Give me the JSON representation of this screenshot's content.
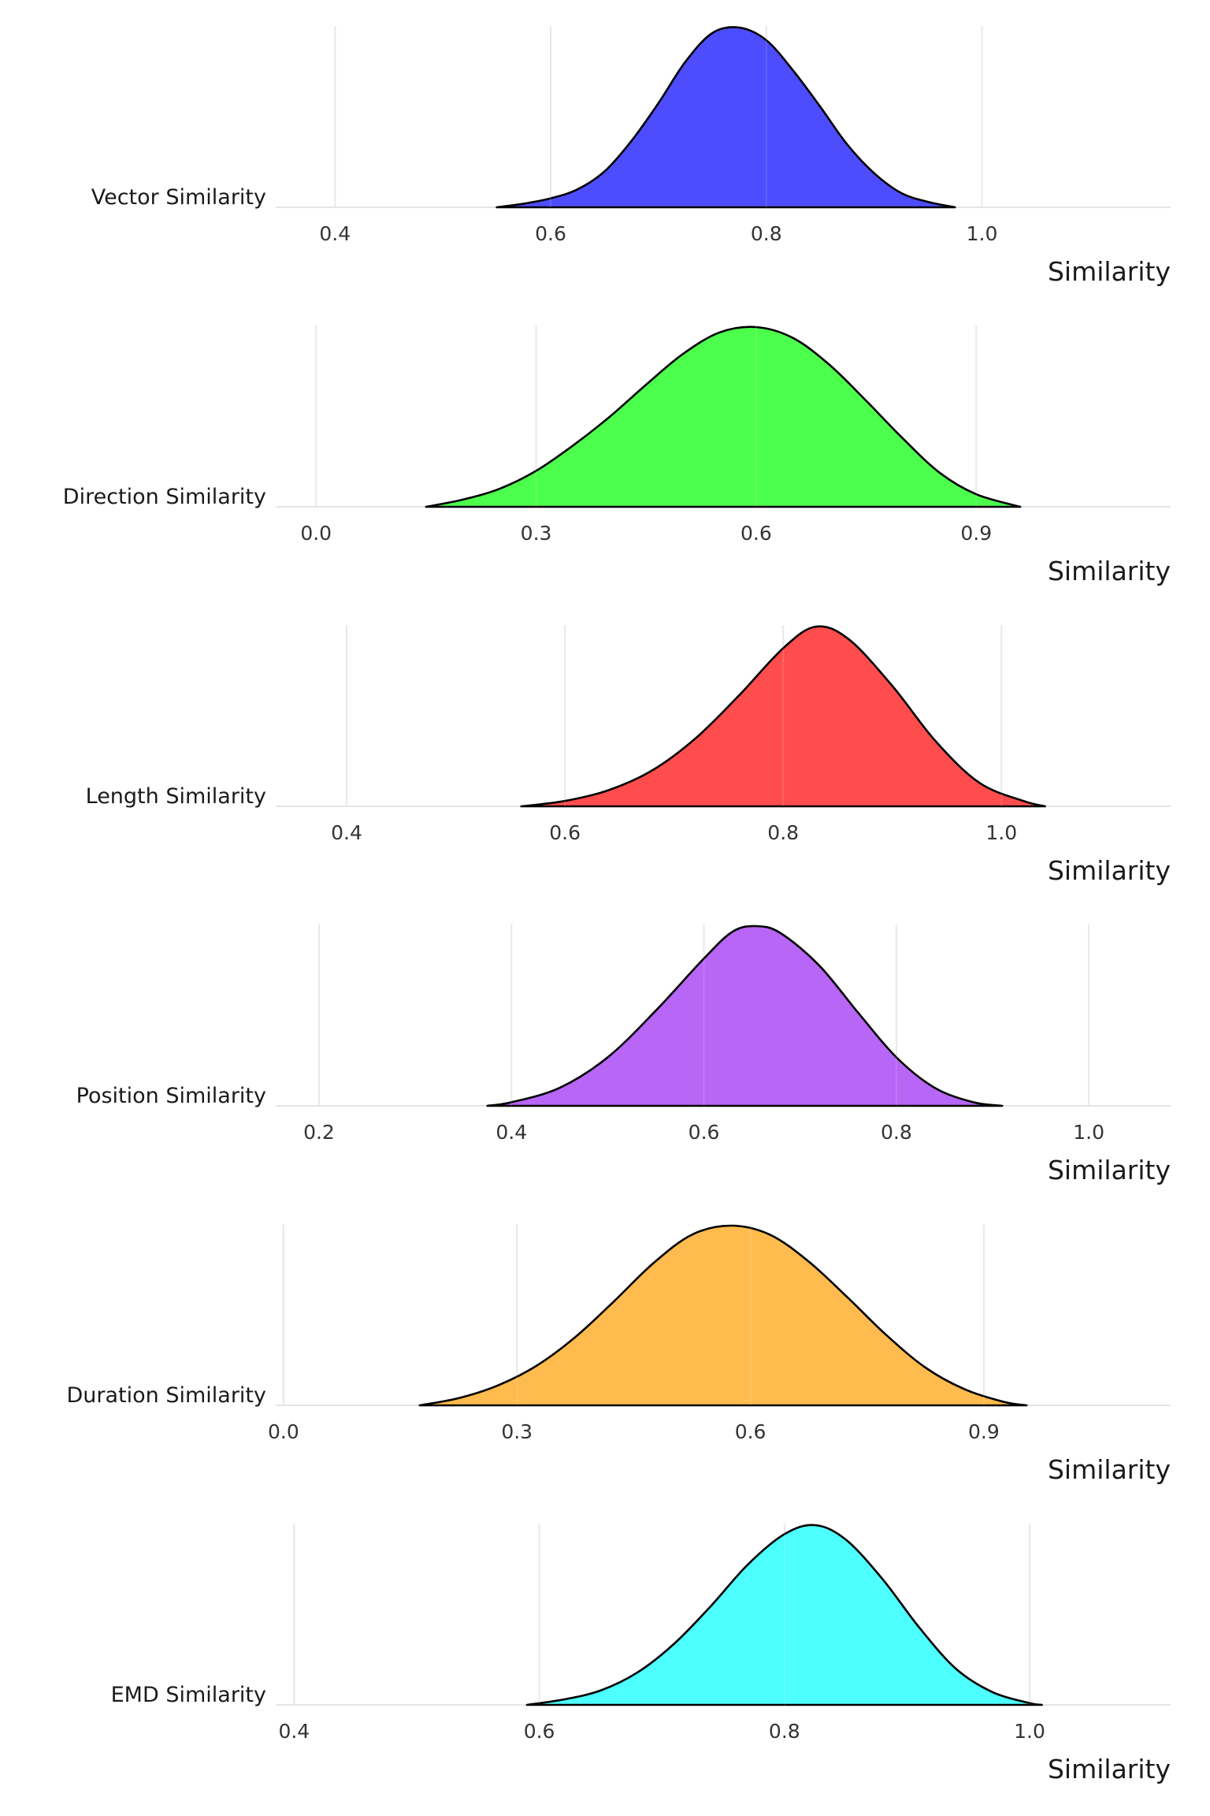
{
  "chart_data": [
    {
      "type": "area",
      "category_label": "Vector Similarity",
      "xlabel": "Similarity",
      "xlim": [
        0.345,
        1.175
      ],
      "ticks": [
        0.4,
        0.6,
        0.8,
        1.0
      ],
      "tick_labels": [
        "0.4",
        "0.6",
        "0.8",
        "1.0"
      ],
      "color": "#4d4dff",
      "grid": true,
      "density": {
        "x": [
          0.55,
          0.575,
          0.6,
          0.625,
          0.65,
          0.675,
          0.7,
          0.725,
          0.75,
          0.775,
          0.8,
          0.825,
          0.85,
          0.875,
          0.9,
          0.925,
          0.95,
          0.975
        ],
        "y": [
          0.0,
          0.02,
          0.05,
          0.1,
          0.2,
          0.37,
          0.58,
          0.81,
          0.97,
          1.0,
          0.93,
          0.76,
          0.56,
          0.35,
          0.19,
          0.08,
          0.03,
          0.0
        ]
      }
    },
    {
      "type": "area",
      "category_label": "Direction Similarity",
      "xlabel": "Similarity",
      "xlim": [
        -0.055,
        1.165
      ],
      "ticks": [
        0.0,
        0.3,
        0.6,
        0.9
      ],
      "tick_labels": [
        "0.0",
        "0.3",
        "0.6",
        "0.9"
      ],
      "color": "#4dff4d",
      "grid": true,
      "density": {
        "x": [
          0.15,
          0.2,
          0.25,
          0.3,
          0.35,
          0.4,
          0.45,
          0.5,
          0.55,
          0.6,
          0.65,
          0.7,
          0.75,
          0.8,
          0.85,
          0.9,
          0.96
        ],
        "y": [
          0.0,
          0.04,
          0.1,
          0.2,
          0.34,
          0.5,
          0.68,
          0.85,
          0.97,
          1.0,
          0.94,
          0.79,
          0.59,
          0.38,
          0.19,
          0.07,
          0.0
        ]
      }
    },
    {
      "type": "area",
      "category_label": "Length Similarity",
      "xlabel": "Similarity",
      "xlim": [
        0.335,
        1.155
      ],
      "ticks": [
        0.4,
        0.6,
        0.8,
        1.0
      ],
      "tick_labels": [
        "0.4",
        "0.6",
        "0.8",
        "1.0"
      ],
      "color": "#ff4d4d",
      "grid": true,
      "density": {
        "x": [
          0.56,
          0.6,
          0.64,
          0.68,
          0.72,
          0.76,
          0.8,
          0.83,
          0.86,
          0.9,
          0.94,
          0.98,
          1.02,
          1.04
        ],
        "y": [
          0.0,
          0.03,
          0.09,
          0.2,
          0.38,
          0.62,
          0.88,
          1.0,
          0.93,
          0.67,
          0.36,
          0.13,
          0.03,
          0.0
        ]
      }
    },
    {
      "type": "area",
      "category_label": "Position Similarity",
      "xlabel": "Similarity",
      "xlim": [
        0.155,
        1.085
      ],
      "ticks": [
        0.2,
        0.4,
        0.6,
        0.8,
        1.0
      ],
      "tick_labels": [
        "0.2",
        "0.4",
        "0.6",
        "0.8",
        "1.0"
      ],
      "color": "#b866f5",
      "grid": true,
      "density": {
        "x": [
          0.375,
          0.4,
          0.45,
          0.5,
          0.55,
          0.6,
          0.63,
          0.655,
          0.68,
          0.72,
          0.76,
          0.8,
          0.84,
          0.88,
          0.91
        ],
        "y": [
          0.0,
          0.02,
          0.1,
          0.27,
          0.53,
          0.82,
          0.97,
          1.0,
          0.96,
          0.78,
          0.52,
          0.27,
          0.1,
          0.02,
          0.0
        ]
      }
    },
    {
      "type": "area",
      "category_label": "Duration Similarity",
      "xlabel": "Similarity",
      "xlim": [
        -0.01,
        1.14
      ],
      "ticks": [
        0.0,
        0.3,
        0.6,
        0.9
      ],
      "tick_labels": [
        "0.0",
        "0.3",
        "0.6",
        "0.9"
      ],
      "color": "#ffbb4d",
      "grid": true,
      "density": {
        "x": [
          0.175,
          0.225,
          0.275,
          0.325,
          0.375,
          0.425,
          0.475,
          0.525,
          0.575,
          0.625,
          0.675,
          0.725,
          0.775,
          0.825,
          0.875,
          0.925,
          0.955
        ],
        "y": [
          0.0,
          0.04,
          0.11,
          0.22,
          0.38,
          0.58,
          0.79,
          0.95,
          1.0,
          0.95,
          0.8,
          0.6,
          0.39,
          0.21,
          0.09,
          0.02,
          0.0
        ]
      }
    },
    {
      "type": "area",
      "category_label": "EMD Similarity",
      "xlabel": "Similarity",
      "xlim": [
        0.385,
        1.115
      ],
      "ticks": [
        0.4,
        0.6,
        0.8,
        1.0
      ],
      "tick_labels": [
        "0.4",
        "0.6",
        "0.8",
        "1.0"
      ],
      "color": "#4dffff",
      "grid": true,
      "density": {
        "x": [
          0.59,
          0.62,
          0.65,
          0.68,
          0.71,
          0.74,
          0.77,
          0.8,
          0.825,
          0.85,
          0.88,
          0.91,
          0.94,
          0.97,
          1.0,
          1.01
        ],
        "y": [
          0.0,
          0.03,
          0.08,
          0.18,
          0.34,
          0.55,
          0.78,
          0.95,
          1.0,
          0.92,
          0.7,
          0.43,
          0.2,
          0.07,
          0.01,
          0.0
        ]
      }
    }
  ]
}
